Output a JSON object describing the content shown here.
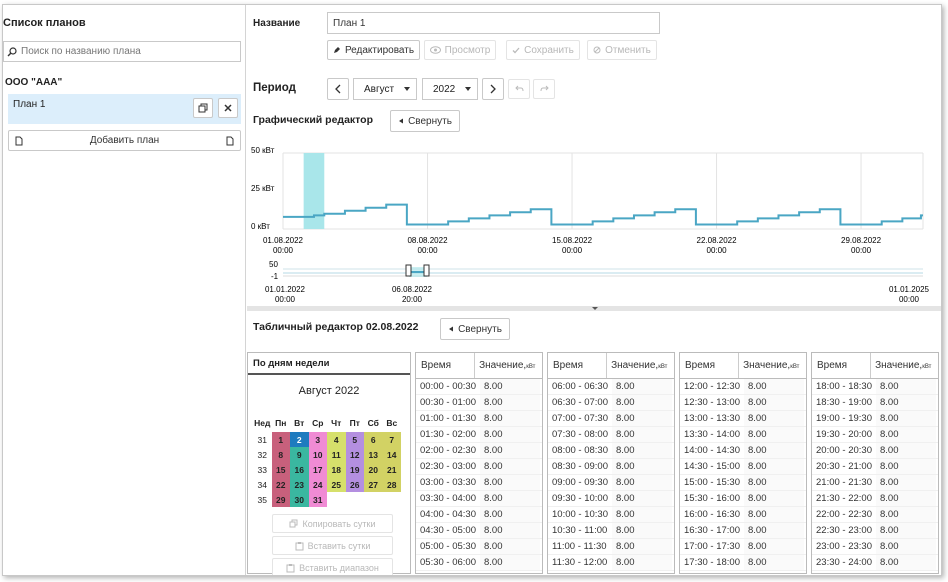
{
  "sidebar": {
    "title": "Список планов",
    "search_placeholder": "Поиск по названию плана",
    "org_name": "ООО \"ААА\"",
    "plan_item": "План 1",
    "add_plan": "Добавить план"
  },
  "form": {
    "name_label": "Название",
    "name_value": "План 1",
    "edit": "Редактировать",
    "preview": "Просмотр",
    "save": "Сохранить",
    "cancel": "Отменить"
  },
  "period": {
    "label": "Период",
    "month": "Август",
    "year": "2022"
  },
  "graph_editor": {
    "title": "Графический редактор",
    "collapse": "Свернуть",
    "y_labels": [
      "50 кВт",
      "25 кВт",
      "0 кВт"
    ],
    "x_labels": [
      {
        "date": "01.08.2022",
        "time": "00:00"
      },
      {
        "date": "08.08.2022",
        "time": "00:00"
      },
      {
        "date": "15.08.2022",
        "time": "00:00"
      },
      {
        "date": "22.08.2022",
        "time": "00:00"
      },
      {
        "date": "29.08.2022",
        "time": "00:00"
      }
    ],
    "nav_y_labels": [
      "50",
      "-1"
    ],
    "nav_x_labels": [
      {
        "date": "01.01.2022",
        "time": "00:00"
      },
      {
        "date": "06.08.2022",
        "time": "20:00"
      },
      {
        "date": "01.01.2025",
        "time": "00:00"
      }
    ]
  },
  "chart_data": {
    "type": "line",
    "title": "",
    "xlabel": "",
    "ylabel": "",
    "ylim": [
      0,
      50
    ],
    "x_unit": "day of August 2022 (step)",
    "series": [
      {
        "name": "",
        "x": [
          1,
          2.5,
          3,
          4,
          5,
          6,
          7,
          8,
          9,
          10,
          11,
          12,
          13,
          14,
          15,
          16,
          17,
          18,
          19,
          20,
          21,
          22,
          23,
          24,
          25,
          26,
          27,
          28,
          29,
          30,
          31,
          31.9
        ],
        "values": [
          8,
          9,
          10,
          12,
          14,
          16,
          3,
          3,
          5,
          7,
          9,
          11,
          13,
          3,
          3,
          5,
          7,
          9,
          11,
          13,
          3,
          3,
          5,
          7,
          9,
          11,
          13,
          3,
          3,
          5,
          7,
          9
        ]
      }
    ],
    "highlight_day": 2
  },
  "table_editor": {
    "title": "Табличный редактор 02.08.2022",
    "collapse": "Свернуть",
    "tab_label": "По дням недели",
    "month_title": "Август 2022",
    "weekday_headers": [
      "Нед",
      "Пн",
      "Вт",
      "Ср",
      "Чт",
      "Пт",
      "Сб",
      "Вс"
    ],
    "weeks": [
      {
        "num": "31",
        "days": [
          "1",
          "2",
          "3",
          "4",
          "5",
          "6",
          "7"
        ]
      },
      {
        "num": "32",
        "days": [
          "8",
          "9",
          "10",
          "11",
          "12",
          "13",
          "14"
        ]
      },
      {
        "num": "33",
        "days": [
          "15",
          "16",
          "17",
          "18",
          "19",
          "20",
          "21"
        ]
      },
      {
        "num": "34",
        "days": [
          "22",
          "23",
          "24",
          "25",
          "26",
          "27",
          "28"
        ]
      },
      {
        "num": "35",
        "days": [
          "29",
          "30",
          "31",
          "",
          "",
          "",
          ""
        ]
      }
    ],
    "weekday_colors": [
      "#c8607c",
      "#3ab7a0",
      "#f08bd4",
      "#d6e06b",
      "#b48fe0",
      "#d2d264",
      "#d2d264"
    ],
    "selected_color": "#1e7bbf",
    "copy_day": "Копировать сутки",
    "paste_day": "Вставить сутки",
    "paste_range": "Вставить диапазон",
    "time_header": "Время",
    "value_header": "Значение,",
    "value_unit": "кВт",
    "columns": [
      {
        "times": [
          "00:00 - 00:30",
          "00:30 - 01:00",
          "01:00 - 01:30",
          "01:30 - 02:00",
          "02:00 - 02:30",
          "02:30 - 03:00",
          "03:00 - 03:30",
          "03:30 - 04:00",
          "04:00 - 04:30",
          "04:30 - 05:00",
          "05:00 - 05:30",
          "05:30 - 06:00"
        ]
      },
      {
        "times": [
          "06:00 - 06:30",
          "06:30 - 07:00",
          "07:00 - 07:30",
          "07:30 - 08:00",
          "08:00 - 08:30",
          "08:30 - 09:00",
          "09:00 - 09:30",
          "09:30 - 10:00",
          "10:00 - 10:30",
          "10:30 - 11:00",
          "11:00 - 11:30",
          "11:30 - 12:00"
        ]
      },
      {
        "times": [
          "12:00 - 12:30",
          "12:30 - 13:00",
          "13:00 - 13:30",
          "13:30 - 14:00",
          "14:00 - 14:30",
          "14:30 - 15:00",
          "15:00 - 15:30",
          "15:30 - 16:00",
          "16:00 - 16:30",
          "16:30 - 17:00",
          "17:00 - 17:30",
          "17:30 - 18:00"
        ]
      },
      {
        "times": [
          "18:00 - 18:30",
          "18:30 - 19:00",
          "19:00 - 19:30",
          "19:30 - 20:00",
          "20:00 - 20:30",
          "20:30 - 21:00",
          "21:00 - 21:30",
          "21:30 - 22:00",
          "22:00 - 22:30",
          "22:30 - 23:00",
          "23:00 - 23:30",
          "23:30 - 24:00"
        ]
      }
    ],
    "cell_value": "8.00"
  },
  "colors": {
    "line": "#4aa6c4",
    "highlight": "#a9e6ea",
    "plan_selected_bg": "#dceefb"
  }
}
